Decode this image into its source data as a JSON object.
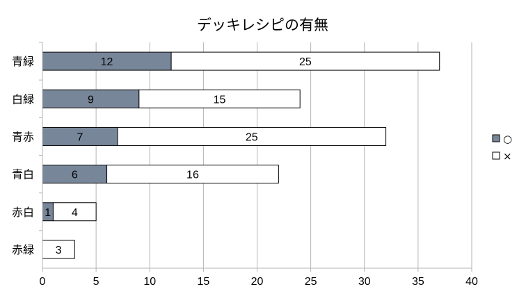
{
  "chart_data": {
    "type": "bar",
    "orientation": "horizontal",
    "stacked": true,
    "title": "デッキレシピの有無",
    "xlabel": "",
    "ylabel": "",
    "xlim": [
      0,
      40
    ],
    "xticks": [
      0,
      5,
      10,
      15,
      20,
      25,
      30,
      35,
      40
    ],
    "grid": true,
    "legend": "right",
    "categories": [
      "青緑",
      "白緑",
      "青赤",
      "青白",
      "赤白",
      "赤緑"
    ],
    "series": [
      {
        "name": "○",
        "color": "#78869a",
        "values": [
          12,
          9,
          7,
          6,
          1,
          0
        ]
      },
      {
        "name": "×",
        "color": "#ffffff",
        "values": [
          25,
          15,
          25,
          16,
          4,
          3
        ]
      }
    ]
  }
}
